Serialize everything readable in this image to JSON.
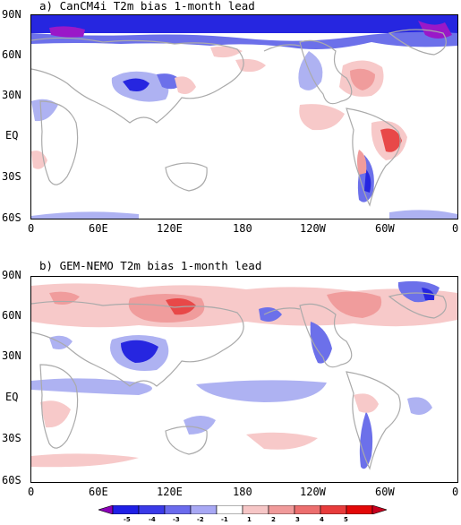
{
  "panels": [
    {
      "title": "a) CanCM4i T2m bias 1-month lead",
      "lat_labels": [
        "90N",
        "60N",
        "30N",
        "EQ",
        "30S",
        "60S"
      ],
      "lon_labels": [
        "0",
        "60E",
        "120E",
        "180",
        "120W",
        "60W",
        "0"
      ]
    },
    {
      "title": "b) GEM-NEMO T2m bias 1-month lead",
      "lat_labels": [
        "90N",
        "60N",
        "30N",
        "EQ",
        "30S",
        "60S"
      ],
      "lon_labels": [
        "0",
        "60E",
        "120E",
        "180",
        "120W",
        "60W",
        "0"
      ]
    }
  ],
  "colorbar": {
    "labels": [
      "-5",
      "-4",
      "-3",
      "-2",
      "-1",
      "1",
      "2",
      "3",
      "4",
      "5"
    ],
    "colors": [
      "#8b00b8",
      "#1f1fe6",
      "#3a3ae8",
      "#6b6bed",
      "#a8a8f4",
      "#ffffff",
      "#f6c6c6",
      "#f09a9a",
      "#ec6e6e",
      "#e83c3c",
      "#e30808",
      "#c8001e"
    ]
  },
  "colors": {
    "land_outline": "#aaaaaa",
    "warm_weak": "#f7c9c9",
    "warm_mid": "#f09c9c",
    "warm_strong": "#e84848",
    "cold_weak": "#aeb2f2",
    "cold_mid": "#6c70ea",
    "cold_strong": "#2626e0",
    "purple": "#9a18c8"
  }
}
